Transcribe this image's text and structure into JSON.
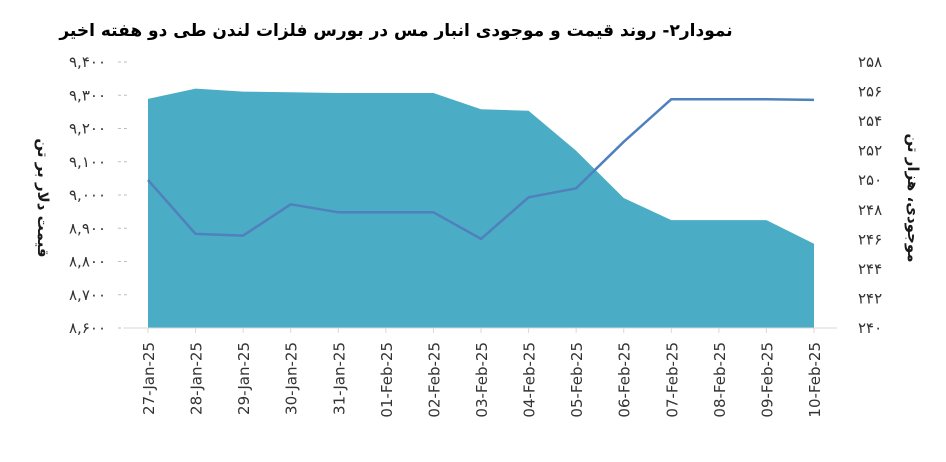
{
  "chart_data": {
    "type": "area",
    "title": "نمودار۲- روند قیمت و موجودی انبار مس در بورس فلزات لندن طی دو هفته اخیر",
    "ylabel_left": "قیمت دلار بر تن",
    "ylabel_right": "موجودی، هزار تن",
    "categories": [
      "27-Jan-25",
      "28-Jan-25",
      "29-Jan-25",
      "30-Jan-25",
      "31-Jan-25",
      "01-Feb-25",
      "02-Feb-25",
      "03-Feb-25",
      "04-Feb-25",
      "05-Feb-25",
      "06-Feb-25",
      "07-Feb-25",
      "08-Feb-25",
      "09-Feb-25",
      "10-Feb-25"
    ],
    "left_axis": {
      "ylim": [
        8600,
        9400
      ],
      "ticks": [
        8600,
        8700,
        8800,
        8900,
        9000,
        9100,
        9200,
        9300,
        9400
      ],
      "tick_labels": [
        "۸,۶۰۰",
        "۸,۷۰۰",
        "۸,۸۰۰",
        "۸,۹۰۰",
        "۹,۰۰۰",
        "۹,۱۰۰",
        "۹,۲۰۰",
        "۹,۳۰۰",
        "۹,۴۰۰"
      ]
    },
    "right_axis": {
      "ylim": [
        240,
        258
      ],
      "ticks": [
        240,
        242,
        244,
        246,
        248,
        250,
        252,
        254,
        256,
        258
      ],
      "tick_labels": [
        "۲۴۰",
        "۲۴۲",
        "۲۴۴",
        "۲۴۶",
        "۲۴۸",
        "۲۵۰",
        "۲۵۲",
        "۲۵۴",
        "۲۵۶",
        "۲۵۸"
      ]
    },
    "series": [
      {
        "axis": "left",
        "kind": "line",
        "values": [
          9045,
          8883,
          8878,
          8972,
          8948,
          8948,
          8948,
          8868,
          8993,
          9020,
          9160,
          9288,
          9288,
          9288,
          9286
        ]
      },
      {
        "axis": "right",
        "kind": "area",
        "values": [
          255.5,
          256.2,
          256.0,
          255.95,
          255.9,
          255.9,
          255.9,
          254.8,
          254.7,
          252.0,
          248.8,
          247.3,
          247.3,
          247.3,
          245.7
        ]
      }
    ],
    "colors": {
      "area": "#4bacc6",
      "line": "#4f81bd",
      "grid": "#bfbfbf"
    },
    "grid": false,
    "legend": "none"
  }
}
